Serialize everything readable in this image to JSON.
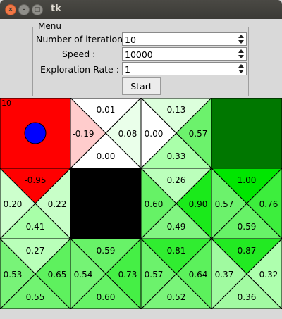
{
  "window": {
    "title": "tk",
    "close_glyph": "×",
    "min_glyph": "–",
    "max_glyph": "□"
  },
  "menu": {
    "legend": "Menu",
    "iteration_label": "Number of iteration:",
    "iteration_value": "10",
    "speed_label": "Speed :",
    "speed_value": "10000",
    "exploration_label": "Exploration Rate :",
    "exploration_value": "1",
    "start_label": "Start"
  },
  "grid": {
    "rows": 3,
    "cols": 4,
    "cells": [
      {
        "row": 0,
        "col": 0,
        "kind": "agent",
        "fill": "#ff0000",
        "label": "10",
        "agent_color": "#0000ff"
      },
      {
        "row": 0,
        "col": 1,
        "kind": "q",
        "values": {
          "up": "0.01",
          "left": "-0.19",
          "right": "0.08",
          "down": "0.00"
        },
        "fills": {
          "up": "#ffffff",
          "left": "#ffcccc",
          "right": "#eaffea",
          "down": "#ffffff"
        }
      },
      {
        "row": 0,
        "col": 2,
        "kind": "q",
        "values": {
          "up": "0.13",
          "left": "0.00",
          "right": "0.57",
          "down": "0.33"
        },
        "fills": {
          "up": "#dcffdc",
          "left": "#ffffff",
          "right": "#6cf26c",
          "down": "#aaffaa"
        }
      },
      {
        "row": 0,
        "col": 3,
        "kind": "goal",
        "fill": "#007700"
      },
      {
        "row": 1,
        "col": 0,
        "kind": "q",
        "values": {
          "up": "-0.95",
          "left": "0.20",
          "right": "0.22",
          "down": "0.41"
        },
        "fills": {
          "up": "#ff0000",
          "left": "#ccffcc",
          "right": "#c8ffc8",
          "down": "#a8ffa8"
        }
      },
      {
        "row": 1,
        "col": 1,
        "kind": "wall",
        "fill": "#000000"
      },
      {
        "row": 1,
        "col": 2,
        "kind": "q",
        "values": {
          "up": "0.26",
          "left": "0.60",
          "right": "0.90",
          "down": "0.49"
        },
        "fills": {
          "up": "#bbffbb",
          "left": "#66f266",
          "right": "#1aea1a",
          "down": "#82f582"
        }
      },
      {
        "row": 1,
        "col": 3,
        "kind": "q",
        "values": {
          "up": "1.00",
          "left": "0.57",
          "right": "0.76",
          "down": "0.59"
        },
        "fills": {
          "up": "#00e600",
          "left": "#6cf26c",
          "right": "#3dee3d",
          "down": "#68f268"
        }
      },
      {
        "row": 2,
        "col": 0,
        "kind": "q",
        "values": {
          "up": "0.27",
          "left": "0.53",
          "right": "0.65",
          "down": "0.55"
        },
        "fills": {
          "up": "#b9ffb9",
          "left": "#78f378",
          "right": "#5ef15e",
          "down": "#72f372"
        }
      },
      {
        "row": 2,
        "col": 1,
        "kind": "q",
        "values": {
          "up": "0.59",
          "left": "0.54",
          "right": "0.73",
          "down": "0.60"
        },
        "fills": {
          "up": "#68f268",
          "left": "#75f375",
          "right": "#45ef45",
          "down": "#66f266"
        }
      },
      {
        "row": 2,
        "col": 2,
        "kind": "q",
        "values": {
          "up": "0.81",
          "left": "0.57",
          "right": "0.64",
          "down": "0.52"
        },
        "fills": {
          "up": "#30ed30",
          "left": "#6cf26c",
          "right": "#5cf15c",
          "down": "#7af47a"
        }
      },
      {
        "row": 2,
        "col": 3,
        "kind": "q",
        "values": {
          "up": "0.87",
          "left": "0.37",
          "right": "0.32",
          "down": "0.36"
        },
        "fills": {
          "up": "#22ea22",
          "left": "#a0faa0",
          "right": "#aeffae",
          "down": "#a2faa2"
        }
      }
    ]
  }
}
